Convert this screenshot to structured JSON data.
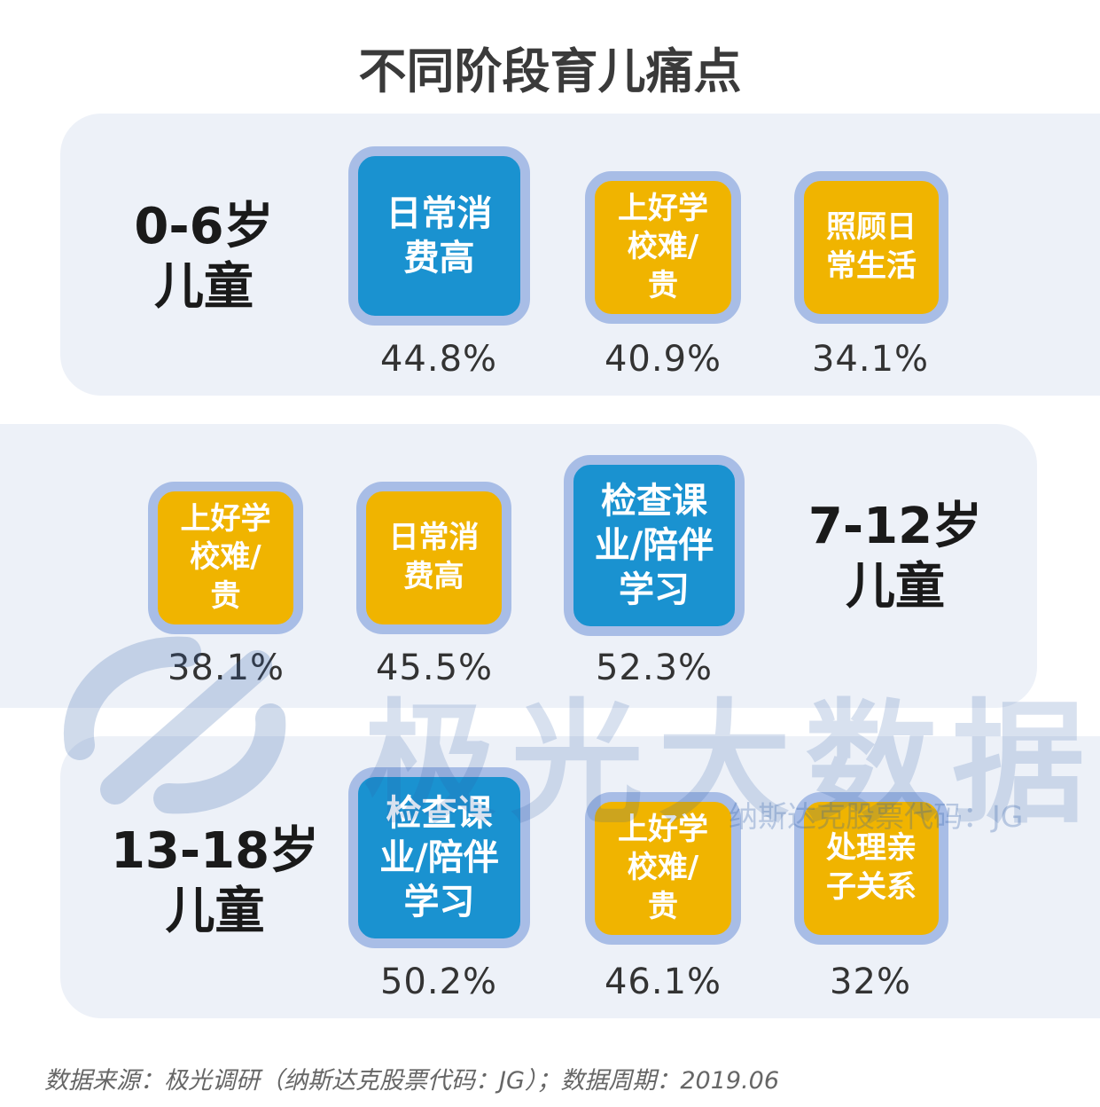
{
  "chart_data": {
    "type": "table",
    "title": "不同阶段育儿痛点",
    "groups": [
      {
        "age": "0-6岁\n儿童",
        "items": [
          {
            "label": "日常消\n费高",
            "value": "44.8%",
            "color": "blue"
          },
          {
            "label": "上好学\n校难/\n贵",
            "value": "40.9%",
            "color": "yellow"
          },
          {
            "label": "照顾日\n常生活",
            "value": "34.1%",
            "color": "yellow"
          }
        ]
      },
      {
        "age": "7-12岁\n儿童",
        "items": [
          {
            "label": "上好学\n校难/\n贵",
            "value": "38.1%",
            "color": "yellow"
          },
          {
            "label": "日常消\n费高",
            "value": "45.5%",
            "color": "yellow"
          },
          {
            "label": "检查课\n业/陪伴\n学习",
            "value": "52.3%",
            "color": "blue"
          }
        ]
      },
      {
        "age": "13-18岁\n儿童",
        "items": [
          {
            "label": "检查课\n业/陪伴\n学习",
            "value": "50.2%",
            "color": "blue"
          },
          {
            "label": "上好学\n校难/\n贵",
            "value": "46.1%",
            "color": "yellow"
          },
          {
            "label": "处理亲\n子关系",
            "value": "32%",
            "color": "yellow"
          }
        ]
      }
    ],
    "colors": {
      "top_item": "#1a92d0",
      "other_item": "#f0b400",
      "box_border": "#a8bde6",
      "panel": "#edf1f8"
    }
  },
  "watermark": {
    "brand": "极光大数据",
    "sub": "纳斯达克股票代码：JG"
  },
  "footer": "数据来源：极光调研（纳斯达克股票代码：JG）；数据周期：2019.06"
}
